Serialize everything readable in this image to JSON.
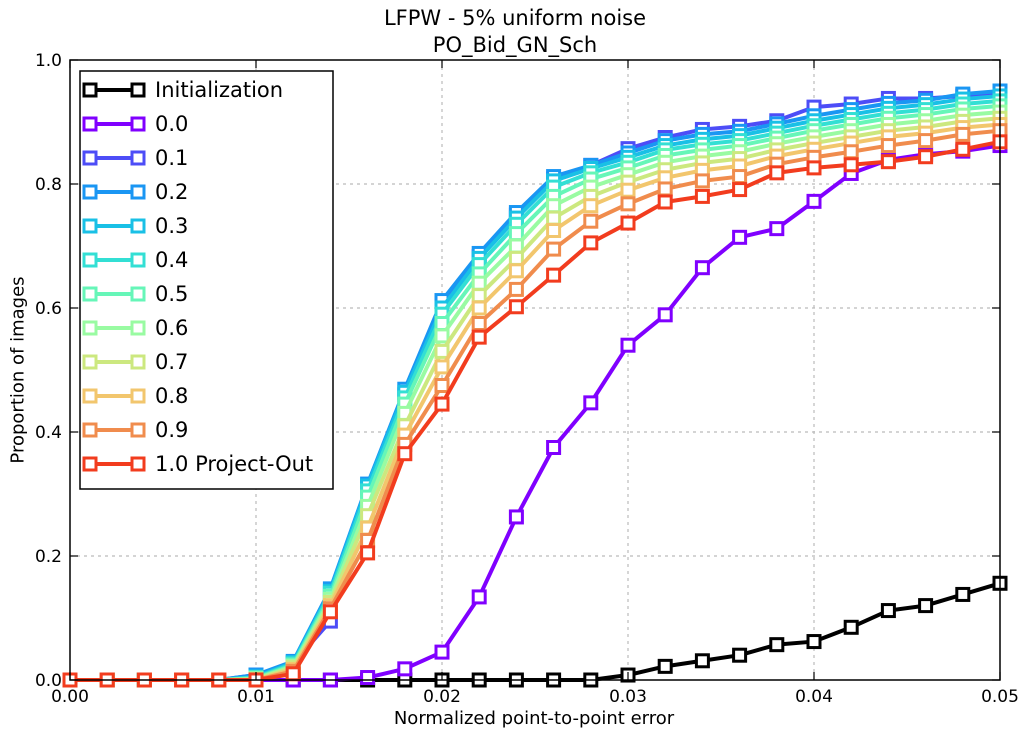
{
  "chart_data": {
    "type": "line",
    "title": "LFPW - 5% uniform noise",
    "subtitle": "PO_Bid_GN_Sch",
    "xlabel": "Normalized point-to-point error",
    "ylabel": "Proportion of images",
    "xlim": [
      0.0,
      0.05
    ],
    "ylim": [
      0.0,
      1.0
    ],
    "xticks": [
      "0.00",
      "0.01",
      "0.02",
      "0.03",
      "0.04",
      "0.05"
    ],
    "yticks": [
      "0.0",
      "0.2",
      "0.4",
      "0.6",
      "0.8",
      "1.0"
    ],
    "grid": true,
    "legend_position": "top-left",
    "x": [
      0.0,
      0.002,
      0.004,
      0.006,
      0.008,
      0.01,
      0.012,
      0.014,
      0.016,
      0.018,
      0.02,
      0.022,
      0.024,
      0.026,
      0.028,
      0.03,
      0.032,
      0.034,
      0.036,
      0.038,
      0.04,
      0.042,
      0.044,
      0.046,
      0.048,
      0.05
    ],
    "series": [
      {
        "name": "Initialization",
        "color": "#000000",
        "values": [
          0,
          0,
          0,
          0,
          0,
          0,
          0,
          0,
          0,
          0,
          0,
          0,
          0,
          0,
          0,
          0.008,
          0.022,
          0.031,
          0.04,
          0.057,
          0.062,
          0.085,
          0.112,
          0.12,
          0.138,
          0.156
        ]
      },
      {
        "name": "0.0",
        "color": "#8000ff",
        "values": [
          0,
          0,
          0,
          0,
          0,
          0,
          0,
          0,
          0.004,
          0.018,
          0.045,
          0.134,
          0.263,
          0.375,
          0.447,
          0.54,
          0.589,
          0.665,
          0.714,
          0.728,
          0.772,
          0.817,
          0.839,
          0.848,
          0.853,
          0.862
        ]
      },
      {
        "name": "0.1",
        "color": "#4d4df7",
        "values": [
          0,
          0,
          0,
          0,
          0,
          0.008,
          0.027,
          0.095,
          0.31,
          0.46,
          0.605,
          0.683,
          0.75,
          0.808,
          0.83,
          0.857,
          0.875,
          0.888,
          0.893,
          0.902,
          0.924,
          0.929,
          0.938,
          0.938,
          0.942,
          0.946
        ]
      },
      {
        "name": "0.2",
        "color": "#1a96f3",
        "values": [
          0,
          0,
          0,
          0,
          0,
          0.008,
          0.03,
          0.147,
          0.316,
          0.469,
          0.612,
          0.688,
          0.754,
          0.812,
          0.83,
          0.85,
          0.87,
          0.88,
          0.885,
          0.897,
          0.91,
          0.92,
          0.93,
          0.935,
          0.945,
          0.95
        ]
      },
      {
        "name": "0.3",
        "color": "#19c0e6",
        "values": [
          0,
          0,
          0,
          0,
          0,
          0.005,
          0.028,
          0.143,
          0.313,
          0.464,
          0.6,
          0.68,
          0.745,
          0.805,
          0.825,
          0.843,
          0.862,
          0.872,
          0.878,
          0.89,
          0.902,
          0.912,
          0.922,
          0.928,
          0.937,
          0.942
        ]
      },
      {
        "name": "0.4",
        "color": "#33dfd4",
        "values": [
          0,
          0,
          0,
          0,
          0,
          0.004,
          0.026,
          0.14,
          0.305,
          0.455,
          0.59,
          0.67,
          0.735,
          0.795,
          0.818,
          0.835,
          0.855,
          0.864,
          0.87,
          0.882,
          0.894,
          0.904,
          0.914,
          0.92,
          0.929,
          0.934
        ]
      },
      {
        "name": "0.5",
        "color": "#66f6b8",
        "values": [
          0,
          0,
          0,
          0,
          0,
          0.003,
          0.024,
          0.135,
          0.295,
          0.445,
          0.575,
          0.655,
          0.72,
          0.78,
          0.808,
          0.826,
          0.846,
          0.855,
          0.862,
          0.874,
          0.886,
          0.896,
          0.906,
          0.912,
          0.921,
          0.926
        ]
      },
      {
        "name": "0.6",
        "color": "#99fba2",
        "values": [
          0,
          0,
          0,
          0,
          0,
          0.002,
          0.022,
          0.13,
          0.28,
          0.43,
          0.555,
          0.64,
          0.7,
          0.765,
          0.795,
          0.815,
          0.835,
          0.845,
          0.852,
          0.865,
          0.876,
          0.886,
          0.896,
          0.902,
          0.911,
          0.916
        ]
      },
      {
        "name": "0.7",
        "color": "#cce87f",
        "values": [
          0,
          0,
          0,
          0,
          0,
          0.001,
          0.02,
          0.125,
          0.265,
          0.41,
          0.53,
          0.62,
          0.68,
          0.745,
          0.78,
          0.803,
          0.823,
          0.834,
          0.841,
          0.855,
          0.866,
          0.876,
          0.886,
          0.892,
          0.901,
          0.906
        ]
      },
      {
        "name": "0.8",
        "color": "#f2c66d",
        "values": [
          0,
          0,
          0,
          0,
          0,
          0,
          0.017,
          0.12,
          0.245,
          0.395,
          0.505,
          0.6,
          0.66,
          0.725,
          0.765,
          0.79,
          0.81,
          0.822,
          0.829,
          0.845,
          0.856,
          0.866,
          0.876,
          0.882,
          0.891,
          0.896
        ]
      },
      {
        "name": "0.9",
        "color": "#f08c4d",
        "values": [
          0,
          0,
          0,
          0,
          0,
          0,
          0.014,
          0.115,
          0.225,
          0.38,
          0.475,
          0.575,
          0.63,
          0.695,
          0.74,
          0.768,
          0.792,
          0.805,
          0.812,
          0.832,
          0.843,
          0.852,
          0.862,
          0.87,
          0.88,
          0.886
        ]
      },
      {
        "name": "1.0 Project-Out",
        "color": "#f23c1e",
        "values": [
          0,
          0,
          0,
          0,
          0,
          0,
          0.01,
          0.11,
          0.205,
          0.365,
          0.445,
          0.553,
          0.602,
          0.653,
          0.705,
          0.737,
          0.771,
          0.78,
          0.791,
          0.818,
          0.826,
          0.831,
          0.836,
          0.844,
          0.856,
          0.868
        ]
      }
    ]
  }
}
